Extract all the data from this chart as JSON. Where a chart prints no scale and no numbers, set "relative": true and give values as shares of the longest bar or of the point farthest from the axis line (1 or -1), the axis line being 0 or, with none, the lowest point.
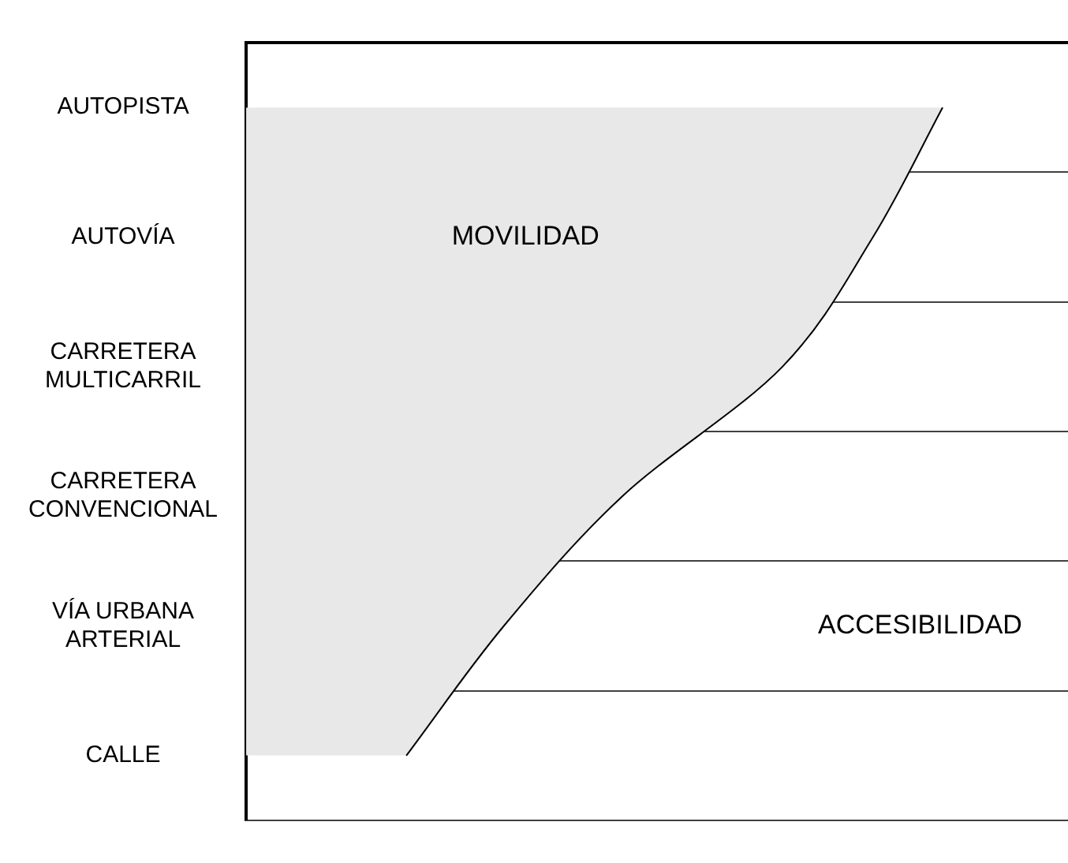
{
  "chart_data": {
    "type": "area",
    "orientation": "horizontal",
    "relative": true,
    "categories": [
      "AUTOPISTA",
      "AUTOVÍA",
      "CARRETERA MULTICARRIL",
      "CARRETERA CONVENCIONAL",
      "VÍA URBANA ARTERIAL",
      "CALLE"
    ],
    "series": [
      {
        "color": "#e8e8e8",
        "values": [
          1,
          0.9,
          0.77,
          0.54,
          0.37,
          0.23
        ]
      }
    ],
    "annotations": [
      "MOVILIDAD",
      "ACCESIBILIDAD"
    ],
    "grid": "y",
    "legend": false,
    "marker": "none"
  }
}
